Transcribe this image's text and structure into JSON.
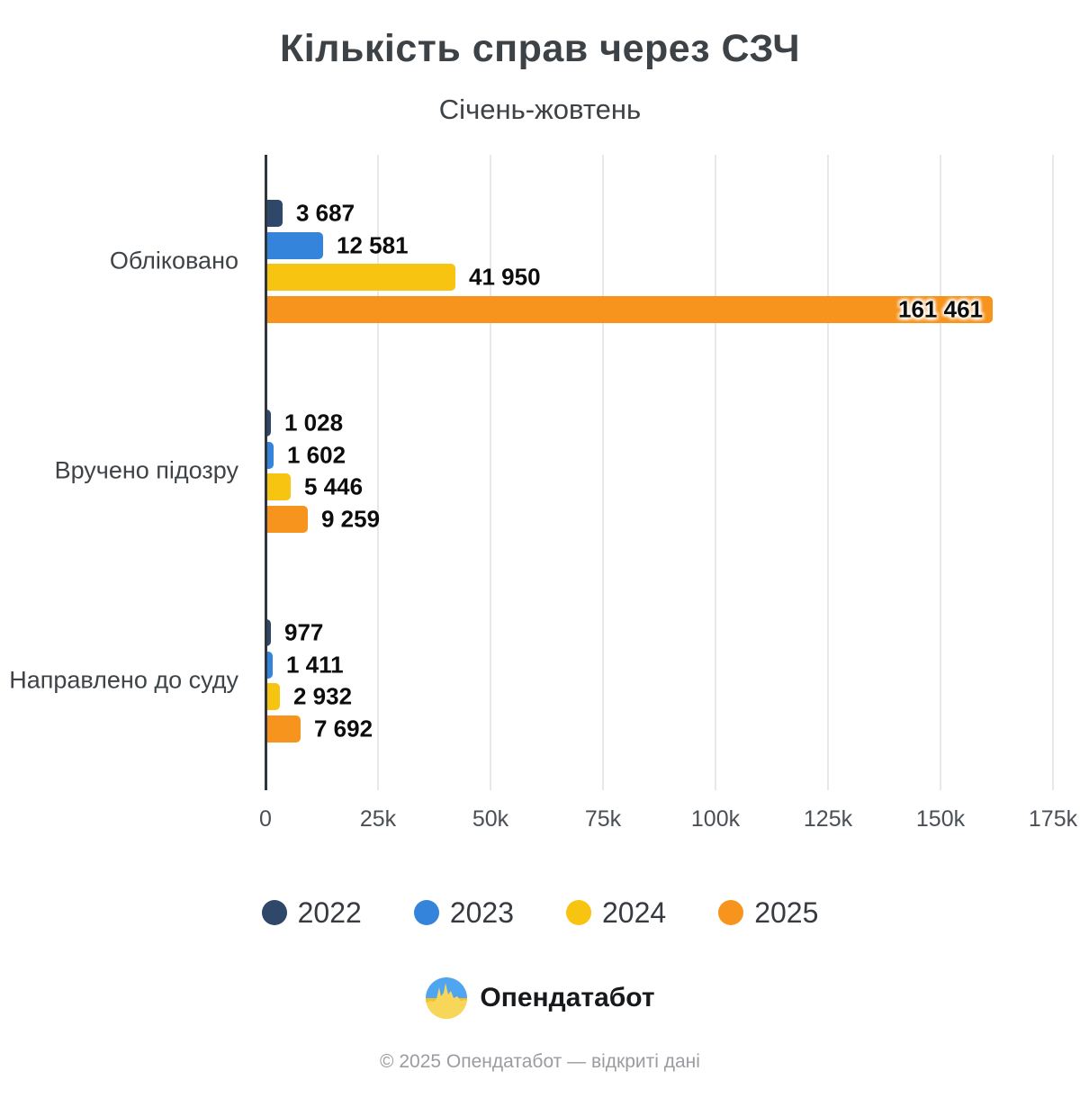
{
  "title": "Кількість справ через СЗЧ",
  "subtitle": "Січень-жовтень",
  "chart_data": {
    "type": "bar",
    "orientation": "horizontal",
    "title": "Кількість справ через СЗЧ",
    "subtitle": "Січень-жовтень",
    "categories": [
      "Обліковано",
      "Вручено підозру",
      "Направлено до суду"
    ],
    "series": [
      {
        "name": "2022",
        "color": "#2F4768",
        "values": [
          3687,
          1028,
          977
        ],
        "labels": [
          "3 687",
          "1 028",
          "977"
        ]
      },
      {
        "name": "2023",
        "color": "#3384DA",
        "values": [
          12581,
          1602,
          1411
        ],
        "labels": [
          "12 581",
          "1 602",
          "1 411"
        ]
      },
      {
        "name": "2024",
        "color": "#F8C412",
        "values": [
          41950,
          5446,
          2932
        ],
        "labels": [
          "41 950",
          "5 446",
          "2 932"
        ]
      },
      {
        "name": "2025",
        "color": "#F7941D",
        "values": [
          161461,
          9259,
          7692
        ],
        "labels": [
          "161 461",
          "9 259",
          "7 692"
        ]
      }
    ],
    "xlim": [
      0,
      175000
    ],
    "xticks": [
      {
        "value": 0,
        "label": "0"
      },
      {
        "value": 25000,
        "label": "25k"
      },
      {
        "value": 50000,
        "label": "50k"
      },
      {
        "value": 75000,
        "label": "75k"
      },
      {
        "value": 100000,
        "label": "100k"
      },
      {
        "value": 125000,
        "label": "125k"
      },
      {
        "value": 150000,
        "label": "150k"
      },
      {
        "value": 175000,
        "label": "175k"
      }
    ],
    "grid": true,
    "legend_position": "bottom"
  },
  "footer": {
    "brand": "Опендатабот",
    "logo_icon": "opendatabot-circle-flag-icon",
    "copyright": "© 2025 Опендатабот — відкриті дані"
  }
}
